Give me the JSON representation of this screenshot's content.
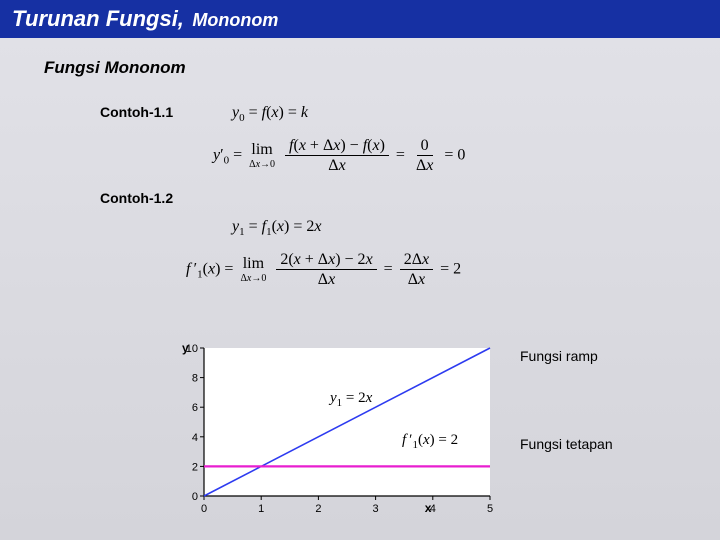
{
  "title": {
    "main": "Turunan Fungsi,",
    "sub": "Mononom"
  },
  "subheading": "Fungsi Mononom",
  "examples": {
    "ex1": {
      "label": "Contoh-1.1",
      "eq_top": "y₀ = f(x) = k",
      "eq_main": "y′₀ = lim Δx→0 (f(x+Δx) − f(x)) / Δx = 0/Δx = 0"
    },
    "ex2": {
      "label": "Contoh-1.2",
      "eq_top": "y₁ = f₁(x) = 2x",
      "eq_main": "f′₁(x) = lim Δx→0 (2(x+Δx) − 2x)/Δx = 2Δx/Δx = 2"
    }
  },
  "chart": {
    "type": "line",
    "x_axis_label": "x",
    "y_axis_label": "y",
    "xlim": [
      0,
      5
    ],
    "ylim": [
      0,
      10
    ],
    "xticks": [
      0,
      1,
      2,
      3,
      4,
      5
    ],
    "yticks": [
      0,
      2,
      4,
      6,
      8,
      10
    ],
    "tick_fontsize": 11,
    "axis_label_fontsize": 12,
    "plot_bg": "#ffffff",
    "axis_color": "#000000",
    "series": [
      {
        "name": "ramp",
        "label": "Fungsi ramp",
        "points": [
          [
            0,
            0
          ],
          [
            5,
            10
          ]
        ],
        "color": "#2d3bf0",
        "line_width": 1.6,
        "inline_eq": "y₁ = 2x"
      },
      {
        "name": "tetapan",
        "label": "Fungsi tetapan",
        "points": [
          [
            0,
            2
          ],
          [
            5,
            2
          ]
        ],
        "color": "#e81ed0",
        "line_width": 2.2,
        "inline_eq": "f′₁(x) = 2"
      }
    ]
  }
}
